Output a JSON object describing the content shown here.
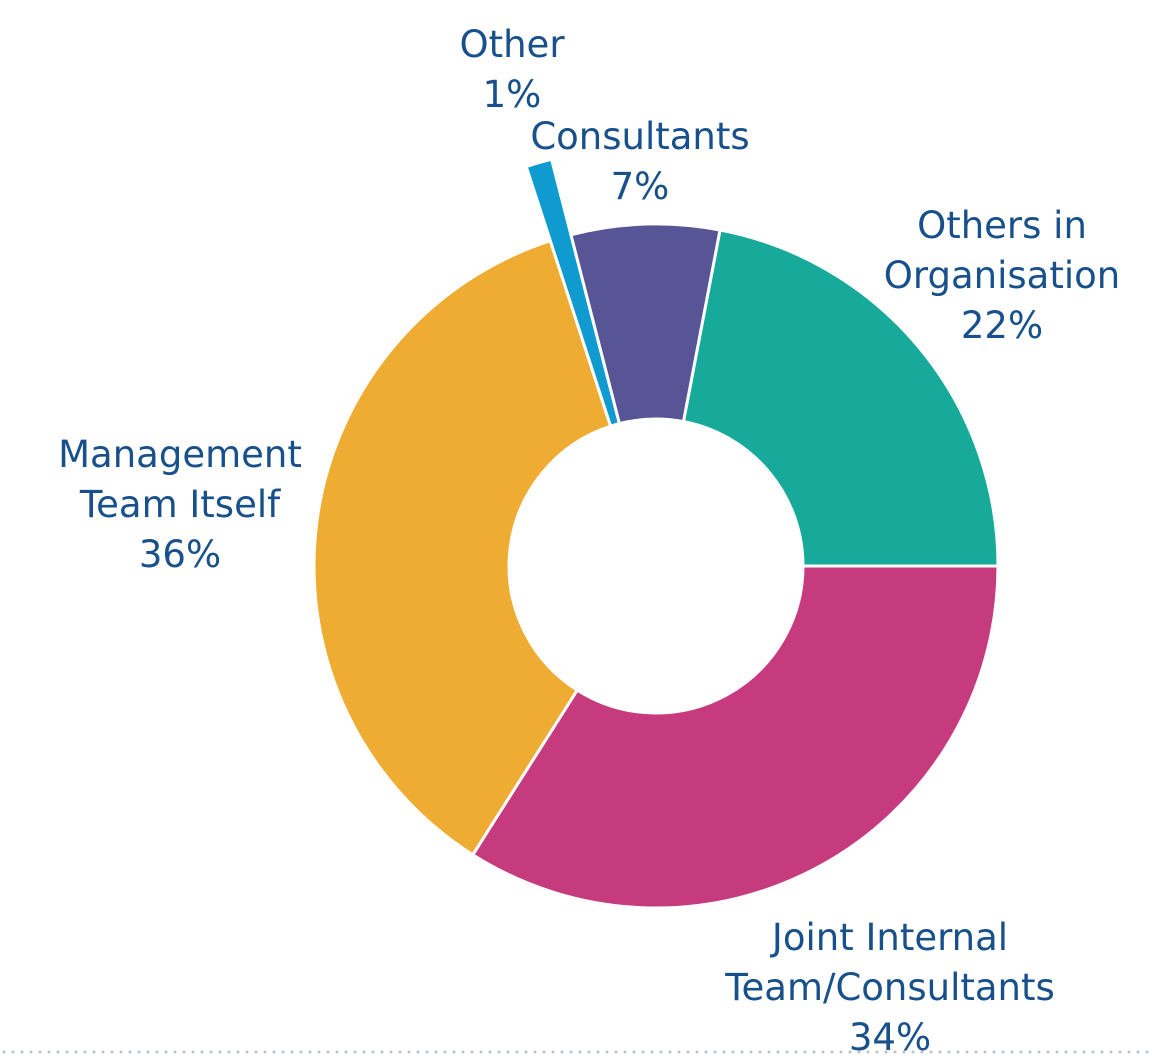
{
  "chart_data": {
    "type": "donut",
    "categories": [
      [
        "Joint Internal",
        "Team/Consultants"
      ],
      [
        "Management",
        "Team Itself"
      ],
      [
        "Other"
      ],
      [
        "Consultants"
      ],
      [
        "Others in",
        "Organisation"
      ]
    ],
    "values": [
      34,
      36,
      1,
      7,
      22
    ],
    "value_labels": [
      "34%",
      "36%",
      "1%",
      "7%",
      "22%"
    ],
    "colors": [
      "#c63b7e",
      "#eeac33",
      "#0f9bd0",
      "#585597",
      "#17aa9b"
    ]
  }
}
